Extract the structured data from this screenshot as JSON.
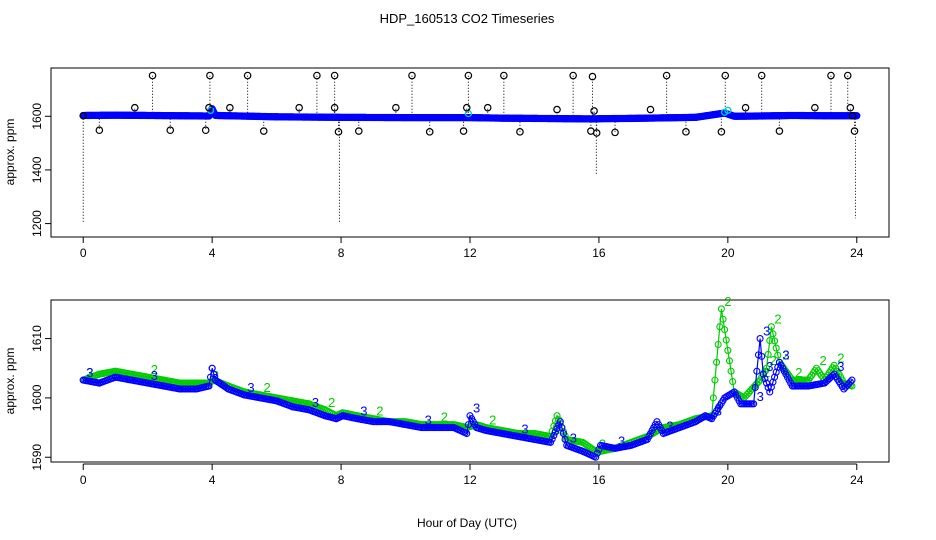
{
  "chart_data": [
    {
      "type": "scatter",
      "title": "HDP_160513  CO2 Timeseries",
      "ylabel": "approx. ppm",
      "xlabel": "",
      "xlim": [
        -1,
        25
      ],
      "ylim": [
        1150,
        1780
      ],
      "x_ticks": [
        "0",
        "4",
        "8",
        "12",
        "16",
        "20",
        "24"
      ],
      "y_ticks": [
        "1200",
        "1400",
        "1600"
      ],
      "grid": false,
      "colors": {
        "raw_points": "#000000",
        "series_1": "#0000ff",
        "series_2": "#00cccc"
      },
      "series": [
        {
          "marker": "open circle, black",
          "style": "vertical dotted spikes from baseline",
          "points": [
            [
              0.0,
              1602
            ],
            [
              0.5,
              1548
            ],
            [
              1.6,
              1632
            ],
            [
              2.15,
              1752
            ],
            [
              2.7,
              1548
            ],
            [
              3.8,
              1548
            ],
            [
              3.9,
              1632
            ],
            [
              3.93,
              1752
            ],
            [
              4.55,
              1632
            ],
            [
              5.1,
              1752
            ],
            [
              5.6,
              1545
            ],
            [
              6.7,
              1632
            ],
            [
              7.25,
              1752
            ],
            [
              7.8,
              1752
            ],
            [
              7.8,
              1632
            ],
            [
              7.92,
              1542
            ],
            [
              8.55,
              1545
            ],
            [
              9.7,
              1632
            ],
            [
              10.2,
              1752
            ],
            [
              10.75,
              1542
            ],
            [
              11.8,
              1545
            ],
            [
              11.9,
              1632
            ],
            [
              11.95,
              1752
            ],
            [
              12.55,
              1632
            ],
            [
              13.05,
              1752
            ],
            [
              13.55,
              1542
            ],
            [
              14.7,
              1625
            ],
            [
              15.2,
              1752
            ],
            [
              15.75,
              1545
            ],
            [
              15.8,
              1748
            ],
            [
              15.85,
              1620
            ],
            [
              15.93,
              1538
            ],
            [
              16.5,
              1540
            ],
            [
              17.6,
              1625
            ],
            [
              18.1,
              1752
            ],
            [
              18.7,
              1542
            ],
            [
              19.8,
              1542
            ],
            [
              19.92,
              1752
            ],
            [
              20.55,
              1632
            ],
            [
              21.05,
              1752
            ],
            [
              21.6,
              1545
            ],
            [
              22.7,
              1632
            ],
            [
              23.2,
              1752
            ],
            [
              23.72,
              1752
            ],
            [
              23.8,
              1632
            ],
            [
              23.87,
              1602
            ],
            [
              23.93,
              1545
            ]
          ],
          "spikes_down": [
            [
              0.0,
              1200
            ],
            [
              7.95,
              1200
            ],
            [
              15.92,
              1380
            ],
            [
              23.96,
              1220
            ]
          ]
        },
        {
          "marker": "open circle, blue",
          "baseline": [
            [
              0,
              1603
            ],
            [
              1,
              1604
            ],
            [
              2,
              1603
            ],
            [
              3,
              1602
            ],
            [
              3.9,
              1601
            ],
            [
              4.0,
              1628
            ],
            [
              4.1,
              1603
            ],
            [
              6,
              1598
            ],
            [
              8,
              1596
            ],
            [
              10,
              1595
            ],
            [
              12,
              1595
            ],
            [
              13,
              1593
            ],
            [
              14,
              1592
            ],
            [
              15,
              1591
            ],
            [
              15.9,
              1590
            ],
            [
              16.0,
              1591
            ],
            [
              17,
              1592
            ],
            [
              18,
              1594
            ],
            [
              19,
              1596
            ],
            [
              19.9,
              1612
            ],
            [
              20.2,
              1600
            ],
            [
              21,
              1601
            ],
            [
              22,
              1603
            ],
            [
              23,
              1602
            ],
            [
              24,
              1602
            ]
          ]
        }
      ]
    },
    {
      "type": "line",
      "xlabel": "Hour of Day (UTC)",
      "ylabel": "approx. ppm",
      "xlim": [
        -1,
        25
      ],
      "ylim": [
        1589.2,
        1616.5
      ],
      "x_ticks": [
        "0",
        "4",
        "8",
        "12",
        "16",
        "20",
        "24"
      ],
      "y_ticks": [
        "1590",
        "1600",
        "1610"
      ],
      "grid": false,
      "series": [
        {
          "name": "3",
          "color": "#0000ff",
          "marker": "open circle",
          "points": [
            [
              0.0,
              1603
            ],
            [
              0.5,
              1602.5
            ],
            [
              1.0,
              1603.5
            ],
            [
              1.5,
              1603
            ],
            [
              2.0,
              1602.5
            ],
            [
              2.5,
              1602
            ],
            [
              3.0,
              1601.5
            ],
            [
              3.5,
              1601.5
            ],
            [
              3.9,
              1602
            ],
            [
              4.0,
              1605
            ],
            [
              4.1,
              1603
            ],
            [
              4.5,
              1601.5
            ],
            [
              5.0,
              1600.5
            ],
            [
              5.5,
              1600
            ],
            [
              6.0,
              1599.5
            ],
            [
              6.5,
              1598.5
            ],
            [
              7.0,
              1598
            ],
            [
              7.5,
              1597
            ],
            [
              7.85,
              1596.5
            ],
            [
              8.05,
              1597
            ],
            [
              8.5,
              1596.5
            ],
            [
              9.0,
              1596
            ],
            [
              9.5,
              1596
            ],
            [
              10.0,
              1595.5
            ],
            [
              10.5,
              1595
            ],
            [
              11.0,
              1595
            ],
            [
              11.5,
              1595
            ],
            [
              11.9,
              1594
            ],
            [
              12.0,
              1597
            ],
            [
              12.2,
              1595
            ],
            [
              12.5,
              1594.5
            ],
            [
              13.0,
              1594
            ],
            [
              13.5,
              1593.5
            ],
            [
              14.0,
              1593
            ],
            [
              14.5,
              1592.5
            ],
            [
              14.8,
              1596
            ],
            [
              15.0,
              1592
            ],
            [
              15.5,
              1591
            ],
            [
              15.9,
              1590
            ],
            [
              16.05,
              1592
            ],
            [
              16.5,
              1591.5
            ],
            [
              17.0,
              1592
            ],
            [
              17.5,
              1593
            ],
            [
              17.8,
              1596
            ],
            [
              18.0,
              1594
            ],
            [
              18.5,
              1595
            ],
            [
              19.0,
              1596
            ],
            [
              19.3,
              1597
            ],
            [
              19.5,
              1596.5
            ],
            [
              19.9,
              1600
            ],
            [
              20.2,
              1601
            ],
            [
              20.4,
              1599
            ],
            [
              20.8,
              1599
            ],
            [
              21.0,
              1610
            ],
            [
              21.1,
              1604
            ],
            [
              21.3,
              1601
            ],
            [
              21.6,
              1606
            ],
            [
              22.0,
              1602
            ],
            [
              22.5,
              1602
            ],
            [
              23.0,
              1602.5
            ],
            [
              23.3,
              1604
            ],
            [
              23.6,
              1601.5
            ],
            [
              23.85,
              1603
            ]
          ]
        },
        {
          "name": "2",
          "color": "#00cc00",
          "marker": "open circle",
          "points": [
            [
              0.0,
              1603
            ],
            [
              0.5,
              1604
            ],
            [
              1.0,
              1604.5
            ],
            [
              1.5,
              1604
            ],
            [
              2.0,
              1603.5
            ],
            [
              2.5,
              1603
            ],
            [
              3.0,
              1602.5
            ],
            [
              3.5,
              1602.5
            ],
            [
              3.9,
              1602.5
            ],
            [
              4.05,
              1603
            ],
            [
              4.5,
              1602
            ],
            [
              5.0,
              1601
            ],
            [
              5.5,
              1600.5
            ],
            [
              6.0,
              1600
            ],
            [
              6.5,
              1599.5
            ],
            [
              7.0,
              1599
            ],
            [
              7.5,
              1598
            ],
            [
              7.85,
              1597
            ],
            [
              8.05,
              1597.5
            ],
            [
              8.5,
              1597
            ],
            [
              9.0,
              1596.5
            ],
            [
              9.5,
              1596
            ],
            [
              10.0,
              1596
            ],
            [
              10.5,
              1595.5
            ],
            [
              11.0,
              1595.5
            ],
            [
              11.5,
              1595.5
            ],
            [
              11.9,
              1595
            ],
            [
              12.2,
              1595.5
            ],
            [
              12.5,
              1595
            ],
            [
              13.0,
              1594.5
            ],
            [
              13.5,
              1594
            ],
            [
              14.0,
              1594
            ],
            [
              14.5,
              1593.5
            ],
            [
              14.7,
              1597
            ],
            [
              15.0,
              1593
            ],
            [
              15.5,
              1592.5
            ],
            [
              15.9,
              1591
            ],
            [
              16.05,
              1591
            ],
            [
              16.5,
              1591.5
            ],
            [
              17.0,
              1592.5
            ],
            [
              17.5,
              1593.5
            ],
            [
              18.0,
              1595
            ],
            [
              18.5,
              1595.5
            ],
            [
              19.0,
              1596.5
            ],
            [
              19.5,
              1597
            ],
            [
              19.8,
              1615
            ],
            [
              20.2,
              1601
            ],
            [
              20.5,
              1600
            ],
            [
              21.0,
              1603
            ],
            [
              21.2,
              1605
            ],
            [
              21.35,
              1612
            ],
            [
              21.6,
              1606
            ],
            [
              22.0,
              1603
            ],
            [
              22.5,
              1603
            ],
            [
              22.75,
              1605
            ],
            [
              23.0,
              1603
            ],
            [
              23.3,
              1605.5
            ],
            [
              23.6,
              1602.5
            ],
            [
              23.85,
              1602
            ]
          ]
        }
      ]
    }
  ]
}
